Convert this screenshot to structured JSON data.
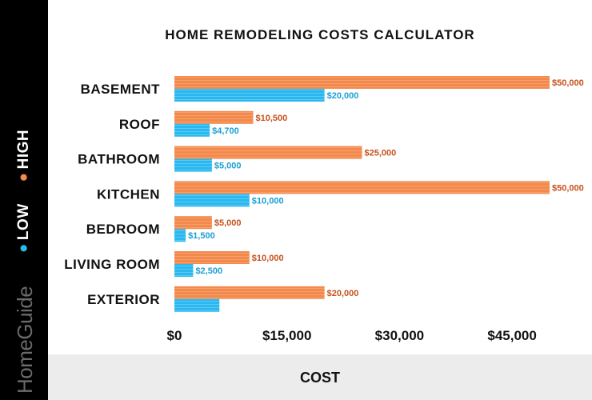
{
  "legend": {
    "high_label": "HIGH",
    "low_label": "LOW"
  },
  "brand": "HomeGuide",
  "chart_data": {
    "type": "bar",
    "orientation": "horizontal",
    "title": "HOME REMODELING COSTS CALCULATOR",
    "xlabel": "COST",
    "ylabel": "",
    "xlim": [
      0,
      50000
    ],
    "xticks": [
      0,
      15000,
      30000,
      45000
    ],
    "xtick_labels": [
      "$0",
      "$15,000",
      "$30,000",
      "$45,000"
    ],
    "categories": [
      "BASEMENT",
      "ROOF",
      "BATHROOM",
      "KITCHEN",
      "BEDROOM",
      "LIVING ROOM",
      "EXTERIOR"
    ],
    "series": [
      {
        "name": "HIGH",
        "color": "#f28a4e",
        "label_color": "#c6521c",
        "values": [
          50000,
          10500,
          25000,
          50000,
          5000,
          10000,
          20000
        ],
        "labels": [
          "$50,000",
          "$10,500",
          "$25,000",
          "$50,000",
          "$5,000",
          "$10,000",
          "$20,000"
        ]
      },
      {
        "name": "LOW",
        "color": "#2bb8ee",
        "label_color": "#1a9fd6",
        "values": [
          20000,
          4700,
          5000,
          10000,
          1500,
          2500,
          6000
        ],
        "labels": [
          "$20,000",
          "$4,700",
          "$5,000",
          "$10,000",
          "$1,500",
          "$2,500",
          ""
        ]
      }
    ],
    "grid": false,
    "legend_position": "left-vertical"
  },
  "colors": {
    "sidebar": "#000000",
    "footer": "#ececec",
    "high": "#f28a4e",
    "low": "#2bb8ee"
  }
}
